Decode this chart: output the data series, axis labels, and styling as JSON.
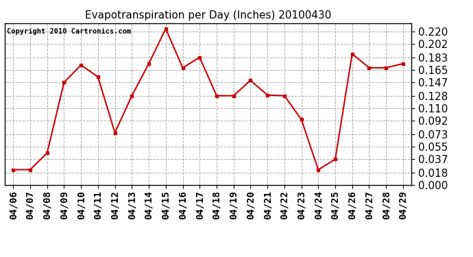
{
  "title": "Evapotranspiration per Day (Inches) 20100430",
  "copyright_text": "Copyright 2010 Cartronics.com",
  "x_labels": [
    "04/06",
    "04/07",
    "04/08",
    "04/09",
    "04/10",
    "04/11",
    "04/12",
    "04/13",
    "04/14",
    "04/15",
    "04/16",
    "04/17",
    "04/18",
    "04/19",
    "04/20",
    "04/21",
    "04/22",
    "04/23",
    "04/24",
    "04/25",
    "04/26",
    "04/27",
    "04/28",
    "04/29"
  ],
  "y_values": [
    0.022,
    0.022,
    0.046,
    0.147,
    0.172,
    0.155,
    0.075,
    0.128,
    0.174,
    0.224,
    0.168,
    0.183,
    0.128,
    0.128,
    0.15,
    0.129,
    0.128,
    0.094,
    0.022,
    0.037,
    0.188,
    0.168,
    0.168,
    0.174
  ],
  "line_color": "#cc0000",
  "marker": "s",
  "marker_size": 3,
  "background_color": "#ffffff",
  "plot_bg_color": "#ffffff",
  "grid_color": "#aaaaaa",
  "y_ticks": [
    0.0,
    0.018,
    0.037,
    0.055,
    0.073,
    0.092,
    0.11,
    0.128,
    0.147,
    0.165,
    0.183,
    0.202,
    0.22
  ],
  "ylim": [
    0.0,
    0.232
  ],
  "title_fontsize": 11,
  "tick_fontsize": 10,
  "ytick_fontsize": 11,
  "copyright_fontsize": 7.5
}
